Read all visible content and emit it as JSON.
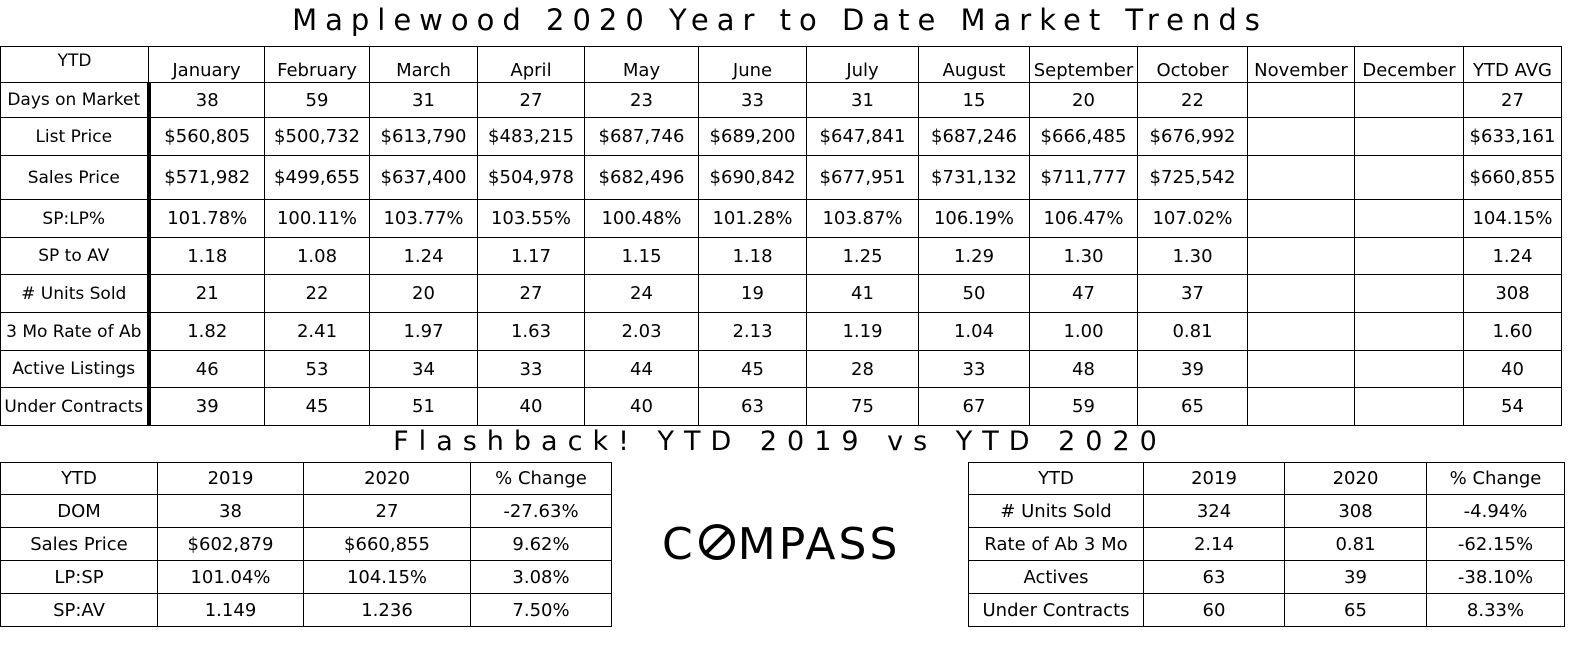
{
  "title": "Maplewood 2020 Year to Date Market Trends",
  "main_table": {
    "corner": "YTD",
    "months": [
      "January",
      "February",
      "March",
      "April",
      "May",
      "June",
      "July",
      "August",
      "September",
      "October",
      "November",
      "December",
      "YTD AVG"
    ],
    "rows": [
      {
        "label": "Days on Market",
        "values": [
          "38",
          "59",
          "31",
          "27",
          "23",
          "33",
          "31",
          "15",
          "20",
          "22",
          "",
          "",
          "27"
        ]
      },
      {
        "label": "List Price",
        "values": [
          "$560,805",
          "$500,732",
          "$613,790",
          "$483,215",
          "$687,746",
          "$689,200",
          "$647,841",
          "$687,246",
          "$666,485",
          "$676,992",
          "",
          "",
          "$633,161"
        ]
      },
      {
        "label": "Sales Price",
        "values": [
          "$571,982",
          "$499,655",
          "$637,400",
          "$504,978",
          "$682,496",
          "$690,842",
          "$677,951",
          "$731,132",
          "$711,777",
          "$725,542",
          "",
          "",
          "$660,855"
        ]
      },
      {
        "label": "SP:LP%",
        "values": [
          "101.78%",
          "100.11%",
          "103.77%",
          "103.55%",
          "100.48%",
          "101.28%",
          "103.87%",
          "106.19%",
          "106.47%",
          "107.02%",
          "",
          "",
          "104.15%"
        ]
      },
      {
        "label": "SP to AV",
        "values": [
          "1.18",
          "1.08",
          "1.24",
          "1.17",
          "1.15",
          "1.18",
          "1.25",
          "1.29",
          "1.30",
          "1.30",
          "",
          "",
          "1.24"
        ]
      },
      {
        "label": "# Units Sold",
        "values": [
          "21",
          "22",
          "20",
          "27",
          "24",
          "19",
          "41",
          "50",
          "47",
          "37",
          "",
          "",
          "308"
        ]
      },
      {
        "label": "3 Mo Rate of Ab",
        "values": [
          "1.82",
          "2.41",
          "1.97",
          "1.63",
          "2.03",
          "2.13",
          "1.19",
          "1.04",
          "1.00",
          "0.81",
          "",
          "",
          "1.60"
        ]
      },
      {
        "label": "Active Listings",
        "values": [
          "46",
          "53",
          "34",
          "33",
          "44",
          "45",
          "28",
          "33",
          "48",
          "39",
          "",
          "",
          "40"
        ]
      },
      {
        "label": "Under Contracts",
        "values": [
          "39",
          "45",
          "51",
          "40",
          "40",
          "63",
          "75",
          "67",
          "59",
          "65",
          "",
          "",
          "54"
        ]
      }
    ]
  },
  "flashback_title": "Flashback! YTD 2019 vs YTD 2020",
  "left_table": {
    "headers": [
      "YTD",
      "2019",
      "2020",
      "% Change"
    ],
    "rows": [
      [
        "DOM",
        "38",
        "27",
        "-27.63%"
      ],
      [
        "Sales Price",
        "$602,879",
        "$660,855",
        "9.62%"
      ],
      [
        "LP:SP",
        "101.04%",
        "104.15%",
        "3.08%"
      ],
      [
        "SP:AV",
        "1.149",
        "1.236",
        "7.50%"
      ]
    ]
  },
  "right_table": {
    "headers": [
      "YTD",
      "2019",
      "2020",
      "% Change"
    ],
    "rows": [
      [
        "# Units Sold",
        "324",
        "308",
        "-4.94%"
      ],
      [
        "Rate of Ab 3 Mo",
        "2.14",
        "0.81",
        "-62.15%"
      ],
      [
        "Actives",
        "63",
        "39",
        "-38.10%"
      ],
      [
        "Under Contracts",
        "60",
        "65",
        "8.33%"
      ]
    ]
  },
  "logo": {
    "c": "C",
    "rest": "MPASS"
  }
}
